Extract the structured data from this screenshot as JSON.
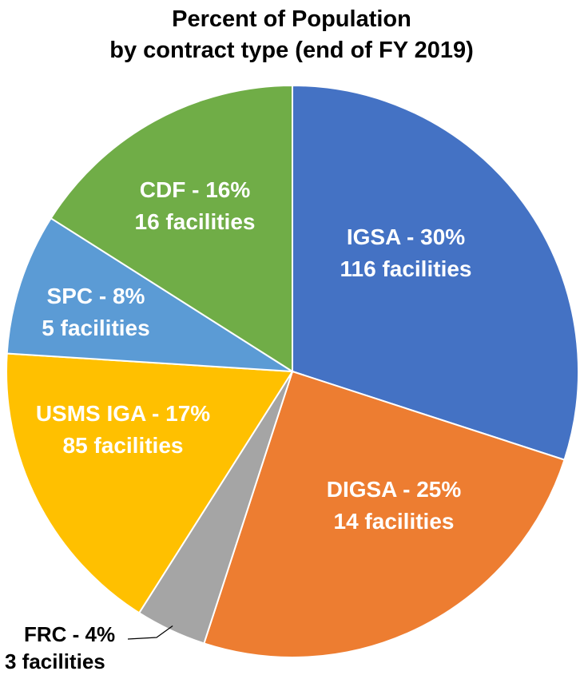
{
  "chart_data": {
    "type": "pie",
    "title_lines": [
      "Percent of Population",
      "by contract type (end of FY 2019)"
    ],
    "slices": [
      {
        "label": "IGSA",
        "percent_label": "IGSA - 30%",
        "facilities_label": "116 facilities",
        "value": 30,
        "facilities": 116,
        "color": "#4472C4",
        "text_color": "#ffffff"
      },
      {
        "label": "DIGSA",
        "percent_label": "DIGSA - 25%",
        "facilities_label": "14 facilities",
        "value": 25,
        "facilities": 14,
        "color": "#ED7D31",
        "text_color": "#ffffff"
      },
      {
        "label": "FRC",
        "percent_label": "FRC - 4%",
        "facilities_label": "3 facilities",
        "value": 4,
        "facilities": 3,
        "color": "#A5A5A5",
        "text_color": "#000000"
      },
      {
        "label": "USMS IGA",
        "percent_label": "USMS IGA - 17%",
        "facilities_label": "85 facilities",
        "value": 17,
        "facilities": 85,
        "color": "#FFC000",
        "text_color": "#ffffff"
      },
      {
        "label": "SPC",
        "percent_label": "SPC - 8%",
        "facilities_label": "5 facilities",
        "value": 8,
        "facilities": 5,
        "color": "#5B9BD5",
        "text_color": "#ffffff"
      },
      {
        "label": "CDF",
        "percent_label": "CDF - 16%",
        "facilities_label": "16 facilities",
        "value": 16,
        "facilities": 16,
        "color": "#70AD47",
        "text_color": "#ffffff"
      }
    ],
    "start_angle_deg": 0,
    "direction": "clockwise",
    "legend": "none"
  }
}
